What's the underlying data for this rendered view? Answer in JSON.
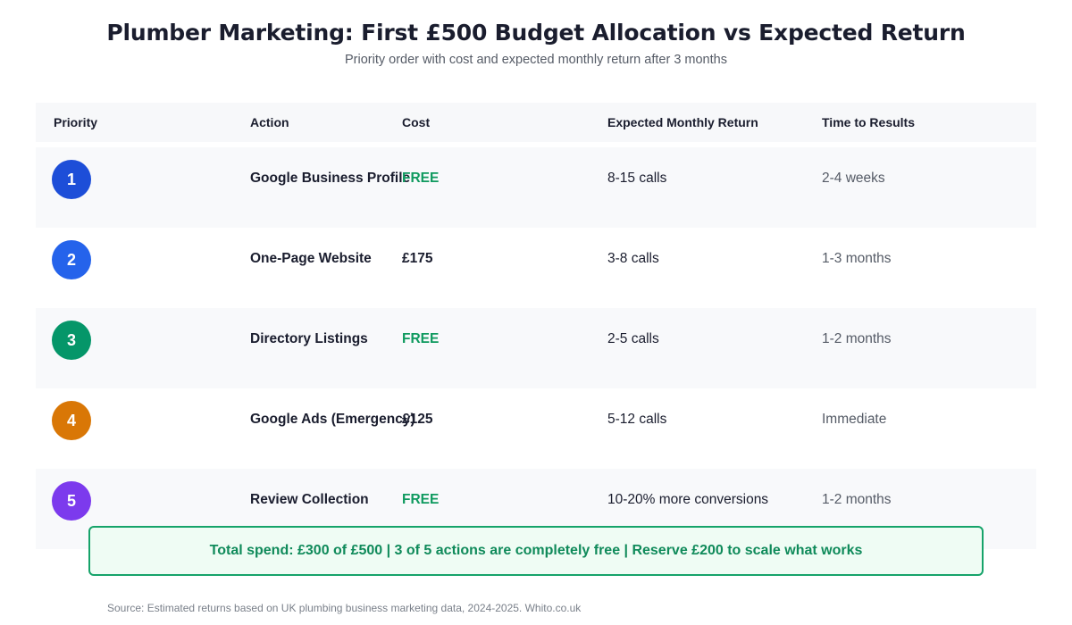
{
  "title": "Plumber Marketing: First £500 Budget Allocation vs Expected Return",
  "subtitle": "Priority order with cost and expected monthly return after 3 months",
  "headers": [
    "Priority",
    "Action",
    "Cost",
    "Expected Monthly Return",
    "Time to Results"
  ],
  "rows": [
    {
      "priority": "1",
      "action": "Google Business Profile",
      "cost": "FREE",
      "return": "8-15 calls",
      "time": "2-4 weeks",
      "badge_color": "#1d4ed8",
      "cost_color": "#0f9a5f"
    },
    {
      "priority": "2",
      "action": "One-Page Website",
      "cost": "£175",
      "return": "3-8 calls",
      "time": "1-3 months",
      "badge_color": "#2563eb",
      "cost_color": "#1a1d2e"
    },
    {
      "priority": "3",
      "action": "Directory Listings",
      "cost": "FREE",
      "return": "2-5 calls",
      "time": "1-2 months",
      "badge_color": "#059669",
      "cost_color": "#0f9a5f"
    },
    {
      "priority": "4",
      "action": "Google Ads (Emergency)",
      "cost": "£125",
      "return": "5-12 calls",
      "time": "Immediate",
      "badge_color": "#d97706",
      "cost_color": "#1a1d2e"
    },
    {
      "priority": "5",
      "action": "Review Collection",
      "cost": "FREE",
      "return": "10-20% more conversions",
      "time": "1-2 months",
      "badge_color": "#7c3aed",
      "cost_color": "#0f9a5f"
    }
  ],
  "summary": "Total spend: £300 of £500  |  3 of 5 actions are completely free  |  Reserve £200 to scale what works",
  "source": "Source: Estimated returns based on UK plumbing business marketing data, 2024-2025. Whito.co.uk"
}
